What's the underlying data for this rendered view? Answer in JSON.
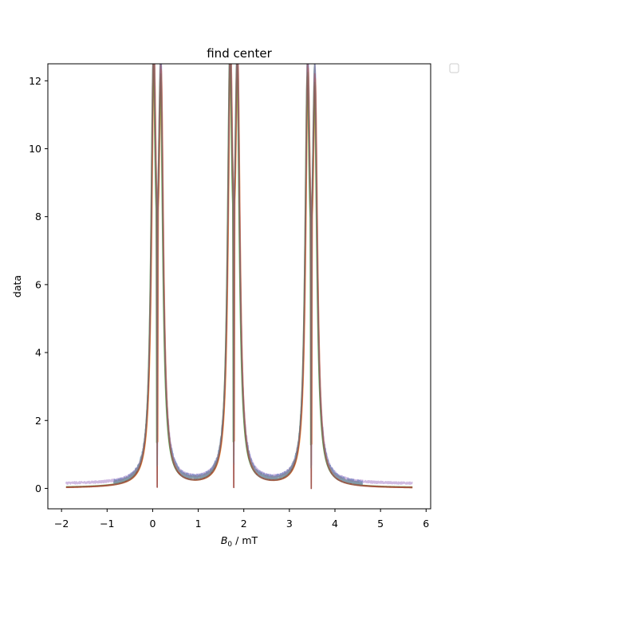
{
  "chart_data": {
    "type": "line",
    "title": "find center",
    "xlabel_symbol": "B",
    "xlabel_subscript": "0",
    "xlabel_unit": " / mT",
    "ylabel": "data",
    "xlim": [
      -2.3,
      6.1
    ],
    "ylim": [
      -0.6,
      12.5
    ],
    "xticks": [
      -2,
      -1,
      0,
      1,
      2,
      3,
      4,
      5,
      6
    ],
    "xtick_labels": [
      "−2",
      "−1",
      "0",
      "1",
      "2",
      "3",
      "4",
      "5",
      "6"
    ],
    "yticks": [
      0,
      2,
      4,
      6,
      8,
      10,
      12
    ],
    "ytick_labels": [
      "0",
      "2",
      "4",
      "6",
      "8",
      "10",
      "12"
    ],
    "grid": false,
    "legend": {
      "placement": "outside-top-right",
      "entries": []
    },
    "peak_groups": [
      {
        "center": 0.1,
        "heights": [
          11.8,
          11.2
        ],
        "half_split": 0.08
      },
      {
        "center": 1.78,
        "heights": [
          11.9,
          11.6
        ],
        "half_split": 0.08
      },
      {
        "center": 3.48,
        "heights": [
          11.35,
          11.0
        ],
        "half_split": 0.08
      }
    ],
    "series": [
      {
        "color": "#1f77b4",
        "opacity": 0.55,
        "x_range": [
          -0.85,
          4.6
        ],
        "baseline": 0.08,
        "noise": 0.12,
        "scale": 1.0,
        "shift": 0.0
      },
      {
        "color": "#ff7f0e",
        "opacity": 0.8,
        "x_range": [
          -1.9,
          5.7
        ],
        "baseline": 0.0,
        "noise": 0.0,
        "scale": 0.97,
        "shift": 0.01
      },
      {
        "color": "#2ca02c",
        "opacity": 0.75,
        "x_range": [
          -1.9,
          5.7
        ],
        "baseline": 0.02,
        "noise": 0.0,
        "scale": 0.95,
        "shift": -0.01
      },
      {
        "color": "#d62728",
        "opacity": 0.75,
        "x_range": [
          -1.9,
          5.7
        ],
        "baseline": 0.01,
        "noise": 0.0,
        "scale": 0.98,
        "shift": 0.0
      },
      {
        "color": "#9467bd",
        "opacity": 0.45,
        "x_range": [
          -1.9,
          5.7
        ],
        "baseline": 0.13,
        "noise": 0.06,
        "scale": 0.99,
        "shift": 0.005
      },
      {
        "color": "#8c564b",
        "opacity": 0.75,
        "x_range": [
          -1.9,
          5.7
        ],
        "baseline": 0.0,
        "noise": 0.0,
        "scale": 0.96,
        "shift": 0.0
      },
      {
        "color": "#7f7f7f",
        "opacity": 0.5,
        "x_range": [
          -0.85,
          4.6
        ],
        "baseline": 0.06,
        "noise": 0.09,
        "scale": 1.0,
        "shift": -0.005
      }
    ]
  }
}
